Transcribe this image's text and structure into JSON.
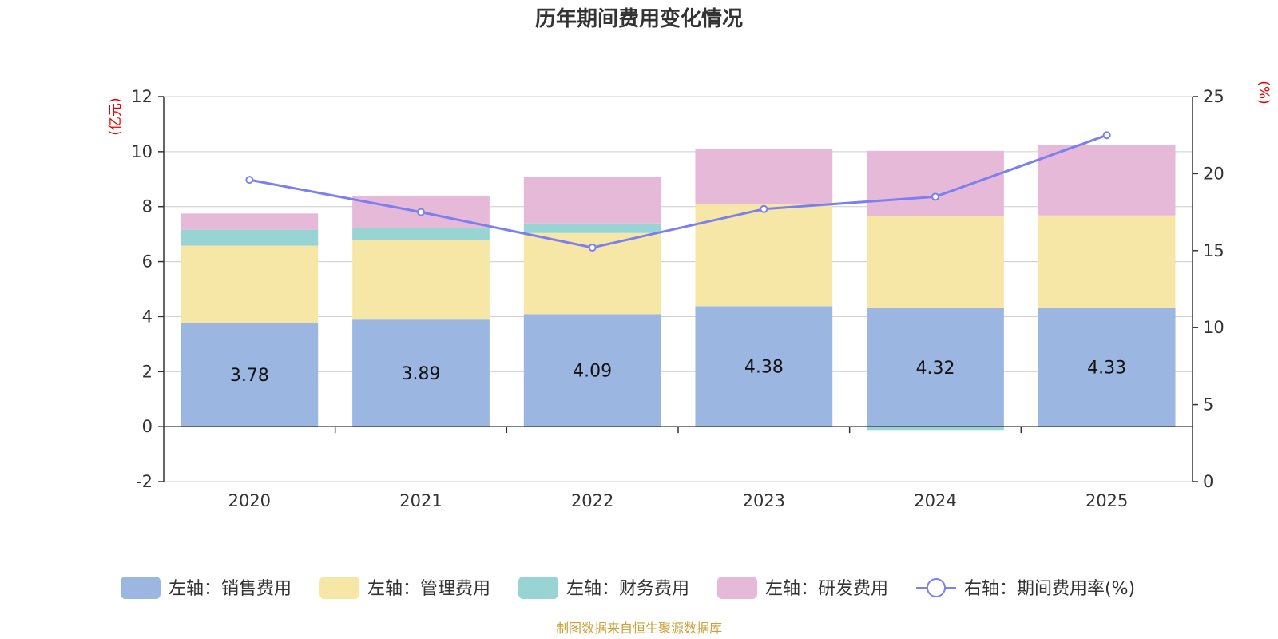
{
  "chart_data": {
    "type": "bar",
    "title": "历年期间费用变化情况",
    "categories": [
      "2020",
      "2021",
      "2022",
      "2023",
      "2024",
      "2025"
    ],
    "series": [
      {
        "name": "左轴：销售费用",
        "axis": "left",
        "color": "#9bb7e1",
        "values": [
          3.78,
          3.89,
          4.09,
          4.38,
          4.32,
          4.33
        ]
      },
      {
        "name": "左轴：管理费用",
        "axis": "left",
        "color": "#f7e7a6",
        "values": [
          2.8,
          2.88,
          2.95,
          3.7,
          3.33,
          3.35
        ]
      },
      {
        "name": "左轴：财务费用",
        "axis": "left",
        "color": "#98d4d4",
        "values": [
          0.58,
          0.45,
          0.35,
          0.0,
          -0.12,
          0.0
        ]
      },
      {
        "name": "左轴：研发费用",
        "axis": "left",
        "color": "#e7b9d8",
        "values": [
          0.59,
          1.18,
          1.7,
          2.02,
          2.38,
          2.55
        ]
      },
      {
        "name": "右轴：期间费用率(%)",
        "axis": "right",
        "type": "line",
        "color": "#7b7ff0",
        "values": [
          19.6,
          17.5,
          15.2,
          17.7,
          18.5,
          22.5
        ]
      }
    ],
    "left_axis": {
      "unit": "(亿元)",
      "ylim": [
        -2,
        12
      ],
      "ticks": [
        -2,
        0,
        2,
        4,
        6,
        8,
        10,
        12
      ]
    },
    "right_axis": {
      "unit": "(%)",
      "ylim": [
        0,
        25
      ],
      "ticks": [
        0,
        5,
        10,
        15,
        20,
        25
      ]
    },
    "data_labels": [
      "3.78",
      "3.89",
      "4.09",
      "4.38",
      "4.32",
      "4.33"
    ],
    "grid": true,
    "legend_position": "bottom",
    "source": "制图数据来自恒生聚源数据库"
  }
}
